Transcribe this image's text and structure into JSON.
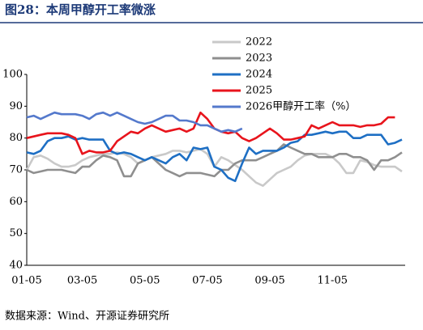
{
  "header": {
    "title": "图28：本周甲醇开工率微涨"
  },
  "chart_data": {
    "type": "line",
    "categories": [
      "01-05",
      null,
      null,
      null,
      null,
      null,
      null,
      null,
      "03-05",
      null,
      null,
      null,
      null,
      null,
      null,
      null,
      null,
      "05-05",
      null,
      null,
      null,
      null,
      null,
      null,
      null,
      null,
      "07-05",
      null,
      null,
      null,
      null,
      null,
      null,
      null,
      null,
      "09-05",
      null,
      null,
      null,
      null,
      null,
      null,
      null,
      null,
      "11-05",
      null,
      null,
      null,
      null,
      null,
      null,
      null,
      null,
      null,
      null
    ],
    "series": [
      {
        "name": "2022",
        "color": "#c9c9c9",
        "values": [
          70,
          74,
          74.5,
          73.5,
          72,
          71,
          71,
          71.5,
          73,
          74,
          74.5,
          75,
          75,
          75.5,
          75,
          74,
          72,
          73,
          74,
          74.5,
          75,
          76,
          76,
          75.5,
          76,
          76.5,
          75,
          71,
          74,
          73,
          71.5,
          70,
          68,
          66,
          65,
          67,
          69,
          70,
          71,
          73,
          74.5,
          75,
          75,
          75,
          74,
          72,
          69,
          69,
          73,
          72.5,
          71.5,
          71,
          71,
          71,
          69.5
        ]
      },
      {
        "name": "2023",
        "color": "#8f8f8f",
        "values": [
          70,
          69,
          69.5,
          70,
          70,
          70,
          69.5,
          69,
          71,
          71,
          73,
          74.5,
          74,
          73,
          68,
          68,
          72,
          73,
          74,
          72,
          70,
          69,
          68,
          69,
          69,
          69,
          68.5,
          68,
          70,
          70,
          72,
          73,
          73,
          73,
          74,
          75,
          76,
          78,
          77,
          76,
          75,
          75,
          74,
          74,
          74,
          75,
          75,
          74,
          74,
          73,
          70,
          73,
          73,
          74,
          75.5
        ]
      },
      {
        "name": "2024",
        "color": "#1e6fc4",
        "values": [
          75.5,
          75,
          76,
          79,
          80,
          80,
          80.5,
          79.5,
          80,
          79.5,
          79.5,
          79.5,
          76,
          75,
          75.5,
          75,
          74,
          73,
          74,
          73,
          72,
          74,
          75,
          73,
          77,
          76.5,
          77,
          71,
          70,
          67.5,
          66.5,
          72,
          77,
          75,
          76,
          76,
          76,
          77,
          78.5,
          79,
          81,
          81,
          81.5,
          82,
          81.5,
          82,
          82,
          80,
          80,
          81,
          81,
          81,
          78,
          78.5,
          79.5
        ]
      },
      {
        "name": "2025",
        "color": "#e8141c",
        "values": [
          80,
          80.5,
          81,
          81.5,
          81.5,
          81.5,
          81,
          80,
          75,
          76,
          75.5,
          75.5,
          76,
          79,
          80.5,
          82,
          81.5,
          83,
          84,
          83,
          82,
          82.5,
          83,
          82,
          83,
          88,
          86,
          83,
          82,
          81.5,
          82,
          80,
          79,
          80,
          81.5,
          83,
          81.5,
          79.5,
          79.5,
          80,
          80.5,
          84,
          83,
          84,
          85,
          84,
          84,
          84,
          83.5,
          84,
          84,
          84.5,
          86.5,
          86.5,
          null
        ]
      },
      {
        "name": "2026甲醇开工率（%）",
        "color": "#5479cc",
        "values": [
          86.5,
          87,
          86,
          87,
          88,
          87.5,
          87.5,
          87.5,
          87,
          86,
          87.5,
          88,
          87,
          88,
          87,
          86,
          85,
          84.5,
          85,
          86,
          87,
          87,
          85.5,
          85.5,
          85,
          84,
          84,
          83,
          82,
          82.5,
          82,
          83,
          null,
          null,
          null,
          null,
          null,
          null,
          null,
          null,
          null,
          null,
          null,
          null,
          null,
          null,
          null,
          null,
          null,
          null,
          null,
          null,
          null,
          null,
          null
        ]
      }
    ],
    "ylim": [
      40,
      100
    ],
    "yticks": [
      40,
      50,
      60,
      70,
      80,
      90,
      100
    ],
    "grid": false
  },
  "footer": {
    "source": "数据来源：Wind、开源证券研究所"
  }
}
